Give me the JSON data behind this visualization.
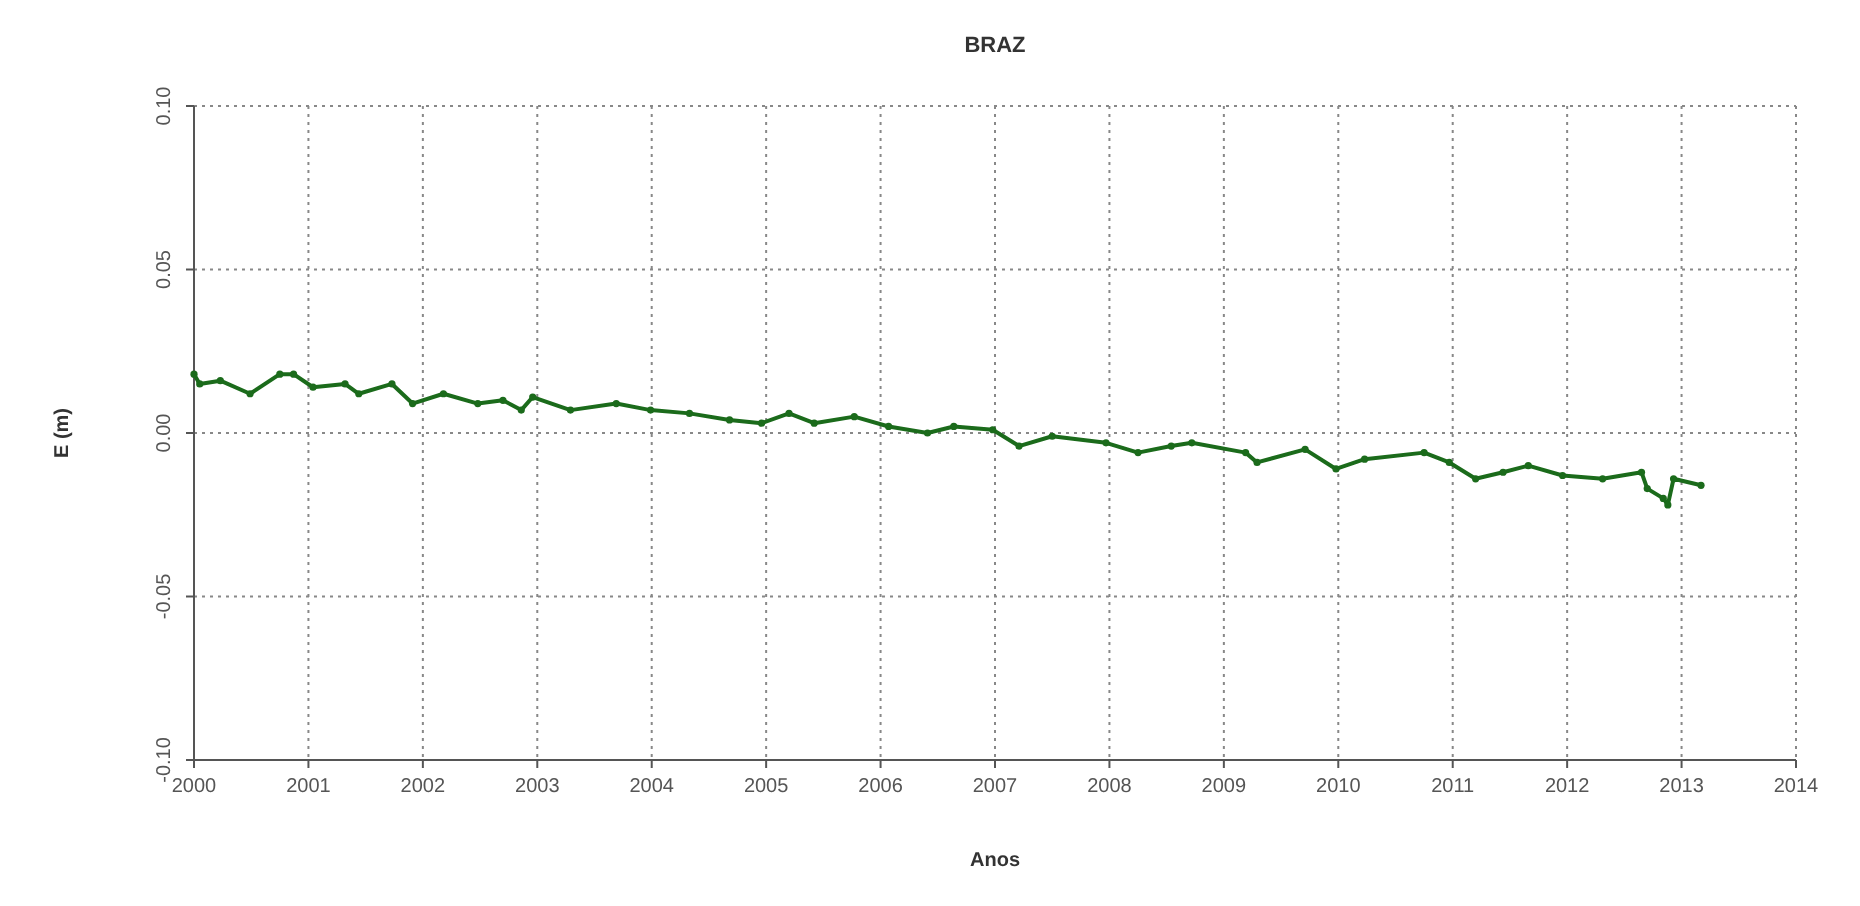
{
  "chart_data": {
    "type": "line",
    "title": "BRAZ",
    "xlabel": "Anos",
    "ylabel": "E (m)",
    "grid": true,
    "marker": "circle",
    "line_style": "solid",
    "xlim": [
      2000,
      2014
    ],
    "xticks": [
      2000,
      2001,
      2002,
      2003,
      2004,
      2005,
      2006,
      2007,
      2008,
      2009,
      2010,
      2011,
      2012,
      2013,
      2014
    ],
    "ylim": [
      -0.1,
      0.1
    ],
    "yticks": [
      {
        "value": -0.1,
        "label": "-0.10"
      },
      {
        "value": -0.05,
        "label": "-0.05"
      },
      {
        "value": 0,
        "label": "0.00"
      },
      {
        "value": 0.05,
        "label": "0.05"
      },
      {
        "value": 0.1,
        "label": "0.10"
      }
    ],
    "series": [
      {
        "color": "#1b6b1b",
        "x": [
          2000.0,
          2000.05,
          2000.23,
          2000.49,
          2000.75,
          2000.87,
          2001.04,
          2001.32,
          2001.44,
          2001.73,
          2001.91,
          2002.18,
          2002.48,
          2002.7,
          2002.86,
          2002.96,
          2003.29,
          2003.69,
          2003.99,
          2004.33,
          2004.68,
          2004.96,
          2005.2,
          2005.42,
          2005.77,
          2006.07,
          2006.41,
          2006.64,
          2006.98,
          2007.21,
          2007.5,
          2007.97,
          2008.25,
          2008.54,
          2008.72,
          2009.19,
          2009.29,
          2009.71,
          2009.98,
          2010.23,
          2010.75,
          2010.97,
          2011.2,
          2011.44,
          2011.66,
          2011.96,
          2012.31,
          2012.65,
          2012.7,
          2012.84,
          2012.88,
          2012.93,
          2013.17
        ],
        "values": [
          0.018,
          0.015,
          0.016,
          0.012,
          0.018,
          0.018,
          0.014,
          0.015,
          0.012,
          0.015,
          0.009,
          0.012,
          0.009,
          0.01,
          0.007,
          0.011,
          0.007,
          0.009,
          0.007,
          0.006,
          0.004,
          0.003,
          0.006,
          0.003,
          0.005,
          0.002,
          0.0,
          0.002,
          0.001,
          -0.004,
          -0.001,
          -0.003,
          -0.006,
          -0.004,
          -0.003,
          -0.006,
          -0.009,
          -0.005,
          -0.011,
          -0.008,
          -0.006,
          -0.009,
          -0.014,
          -0.012,
          -0.01,
          -0.013,
          -0.014,
          -0.012,
          -0.017,
          -0.02,
          -0.022,
          -0.014,
          -0.016
        ]
      }
    ]
  }
}
